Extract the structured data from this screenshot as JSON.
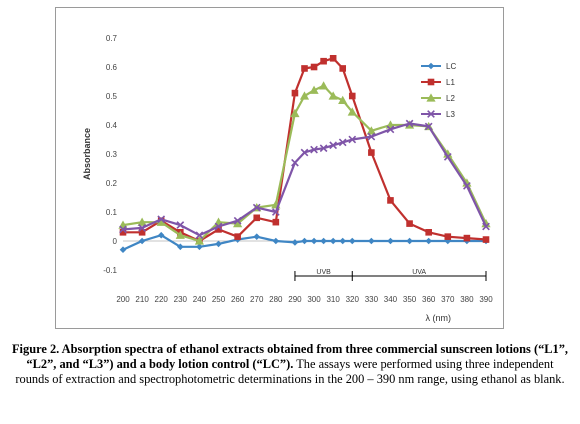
{
  "chart_data": {
    "type": "line",
    "ylabel": "Absorbance",
    "xlabel": "λ (nm)",
    "xlim": [
      200,
      390
    ],
    "ylim": [
      -0.1,
      0.7
    ],
    "x_ticks": [
      200,
      210,
      220,
      230,
      240,
      250,
      260,
      270,
      280,
      290,
      300,
      310,
      320,
      330,
      340,
      350,
      360,
      370,
      380,
      390
    ],
    "y_ticks": [
      "-0.1",
      "0",
      "0.1",
      "0.2",
      "0.3",
      "0.4",
      "0.5",
      "0.6",
      "0.7"
    ],
    "legend_position": "top-right",
    "regions": [
      {
        "label": "UVB",
        "from": 290,
        "to": 320
      },
      {
        "label": "UVA",
        "from": 320,
        "to": 390
      }
    ],
    "series": [
      {
        "name": "LC",
        "color": "#3f86c4",
        "marker": "diamond",
        "x": [
          200,
          210,
          220,
          230,
          240,
          250,
          260,
          270,
          280,
          290,
          295,
          300,
          305,
          310,
          315,
          320,
          330,
          340,
          350,
          360,
          370,
          380,
          390
        ],
        "y": [
          -0.03,
          0.0,
          0.02,
          -0.02,
          -0.02,
          -0.01,
          0.005,
          0.015,
          0.0,
          -0.005,
          0.0,
          0.0,
          0.0,
          0.0,
          0.0,
          0.0,
          0.0,
          0.0,
          0.0,
          0.0,
          0.0,
          0.0,
          0.0
        ]
      },
      {
        "name": "L1",
        "color": "#c0302e",
        "marker": "square",
        "x": [
          200,
          210,
          220,
          230,
          240,
          250,
          260,
          270,
          280,
          290,
          295,
          300,
          305,
          310,
          315,
          320,
          330,
          340,
          350,
          360,
          370,
          380,
          390
        ],
        "y": [
          0.03,
          0.03,
          0.07,
          0.03,
          0.0,
          0.04,
          0.015,
          0.08,
          0.065,
          0.51,
          0.595,
          0.6,
          0.62,
          0.63,
          0.595,
          0.5,
          0.305,
          0.14,
          0.06,
          0.03,
          0.015,
          0.01,
          0.005
        ]
      },
      {
        "name": "L2",
        "color": "#9bbb59",
        "marker": "triangle",
        "x": [
          200,
          210,
          220,
          230,
          240,
          250,
          260,
          270,
          280,
          290,
          295,
          300,
          305,
          310,
          315,
          320,
          330,
          340,
          350,
          360,
          370,
          380,
          390
        ],
        "y": [
          0.055,
          0.065,
          0.065,
          0.02,
          0.0,
          0.065,
          0.06,
          0.115,
          0.125,
          0.44,
          0.5,
          0.52,
          0.535,
          0.5,
          0.485,
          0.445,
          0.38,
          0.4,
          0.4,
          0.395,
          0.3,
          0.2,
          0.06
        ]
      },
      {
        "name": "L3",
        "color": "#7f55a8",
        "marker": "x",
        "x": [
          200,
          210,
          220,
          230,
          240,
          250,
          260,
          270,
          280,
          290,
          295,
          300,
          305,
          310,
          315,
          320,
          330,
          340,
          350,
          360,
          370,
          380,
          390
        ],
        "y": [
          0.04,
          0.045,
          0.075,
          0.055,
          0.02,
          0.05,
          0.07,
          0.115,
          0.1,
          0.27,
          0.305,
          0.315,
          0.32,
          0.33,
          0.34,
          0.35,
          0.36,
          0.385,
          0.405,
          0.395,
          0.29,
          0.19,
          0.05
        ]
      }
    ]
  },
  "caption": {
    "bold": "Figure 2. Absorption spectra of ethanol extracts obtained from three commercial sunscreen lotions (“L1”, “L2”, and “L3”) and a body lotion control (“LC”).",
    "normal": " The assays were performed using three independent rounds of extraction and spectrophotometric determinations in the 200 – 390 nm range, using ethanol as blank."
  }
}
